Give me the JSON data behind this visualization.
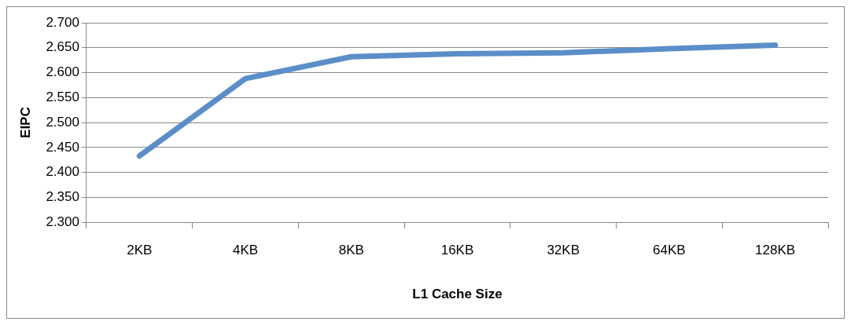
{
  "chart_data": {
    "type": "line",
    "xlabel": "L1 Cache Size",
    "ylabel": "EIPC",
    "categories": [
      "2KB",
      "4KB",
      "8KB",
      "16KB",
      "32KB",
      "64KB",
      "128KB"
    ],
    "series": [
      {
        "color": "#5b8ec9",
        "values": [
          2.433,
          2.588,
          2.632,
          2.638,
          2.64,
          2.648,
          2.655
        ]
      }
    ],
    "ylim": [
      2.3,
      2.7
    ],
    "yticks": [
      {
        "value": 2.3,
        "label": "2.300"
      },
      {
        "value": 2.35,
        "label": "2.350"
      },
      {
        "value": 2.4,
        "label": "2.400"
      },
      {
        "value": 2.45,
        "label": "2.450"
      },
      {
        "value": 2.5,
        "label": "2.500"
      },
      {
        "value": 2.55,
        "label": "2.550"
      },
      {
        "value": 2.6,
        "label": "2.600"
      },
      {
        "value": 2.65,
        "label": "2.650"
      },
      {
        "value": 2.7,
        "label": "2.700"
      }
    ],
    "grid": "y",
    "legend": false,
    "marker": "none",
    "line_style": "solid"
  }
}
